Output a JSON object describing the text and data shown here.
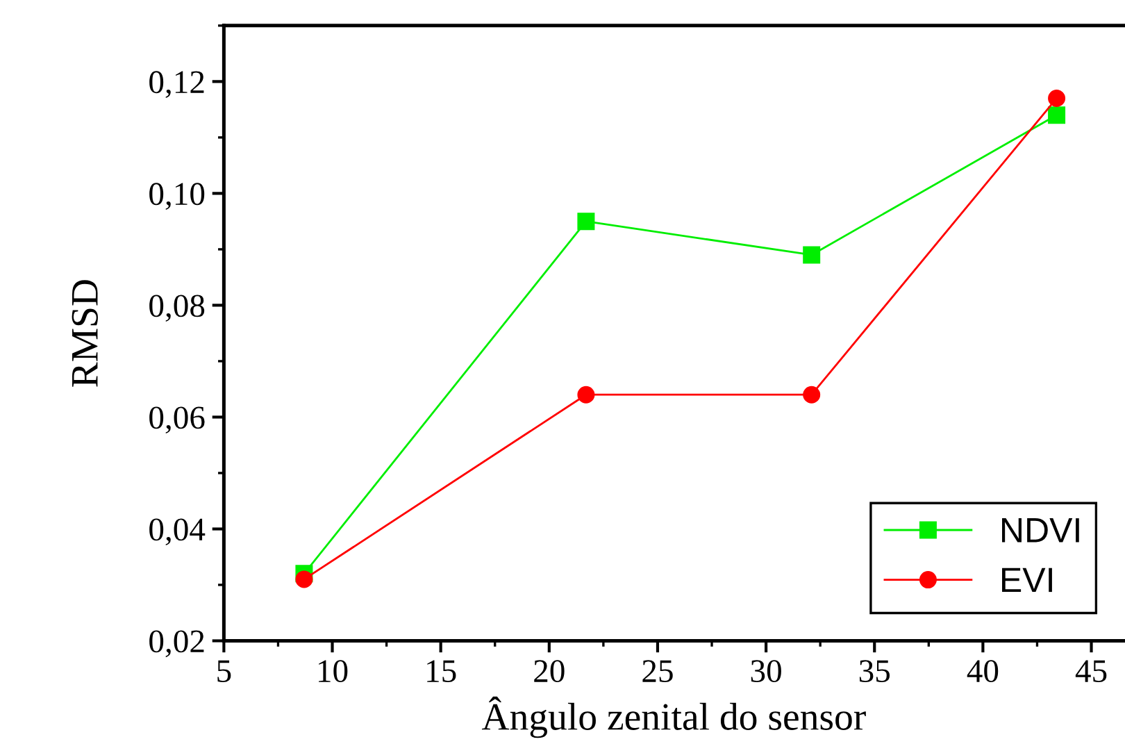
{
  "chart_data": {
    "type": "line",
    "xlabel": "Ângulo zenital do sensor",
    "ylabel": "RMSD",
    "x": [
      8.7,
      21.7,
      32.1,
      43.4
    ],
    "series": [
      {
        "name": "NDVI",
        "color": "#00ee00",
        "values": [
          0.032,
          0.095,
          0.089,
          0.114
        ],
        "marker": "square"
      },
      {
        "name": "EVI",
        "color": "#ff0000",
        "values": [
          0.031,
          0.064,
          0.064,
          0.117
        ],
        "marker": "circle"
      }
    ],
    "xlim": [
      5,
      46.5
    ],
    "ylim": [
      0.02,
      0.13
    ],
    "xticks": [
      5,
      10,
      15,
      20,
      25,
      30,
      35,
      40,
      45
    ],
    "yticks": [
      {
        "value": 0.02,
        "label": "0,02"
      },
      {
        "value": 0.04,
        "label": "0,04"
      },
      {
        "value": 0.06,
        "label": "0,06"
      },
      {
        "value": 0.08,
        "label": "0,08"
      },
      {
        "value": 0.1,
        "label": "0,10"
      },
      {
        "value": 0.12,
        "label": "0,12"
      }
    ],
    "legend": "bottom right",
    "grid": false,
    "line_style": "solid"
  }
}
